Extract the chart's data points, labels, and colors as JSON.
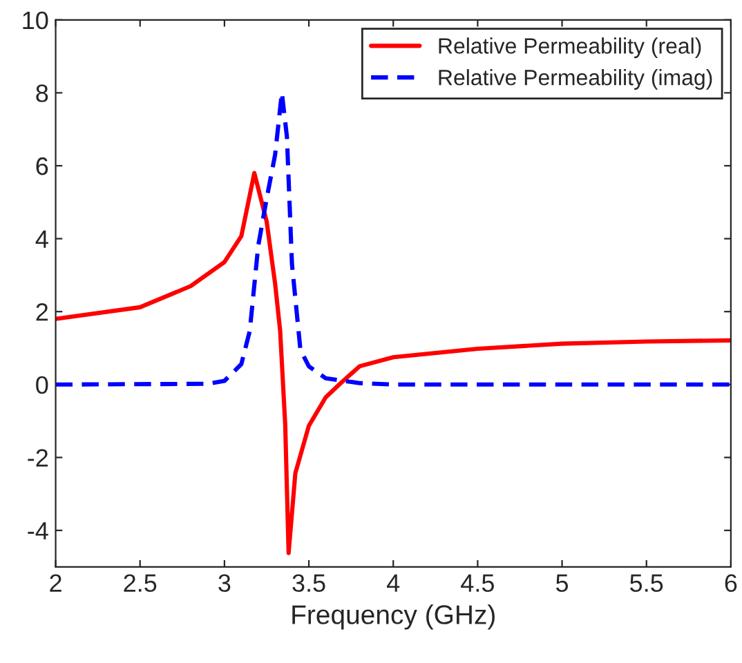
{
  "chart_data": {
    "type": "line",
    "xlabel": "Frequency (GHz)",
    "xlim": [
      2,
      6
    ],
    "ylim": [
      -5,
      10
    ],
    "xticks": [
      2,
      2.5,
      3,
      3.5,
      4,
      4.5,
      5,
      5.5,
      6
    ],
    "yticks": [
      -4,
      -2,
      0,
      2,
      4,
      6,
      8,
      10
    ],
    "grid": false,
    "legend": "top right",
    "marker": "none",
    "series": [
      {
        "name": "Relative Permeability (real)",
        "color": "#ff0000",
        "line_style": "solid",
        "x": [
          2,
          2.5,
          2.8,
          3.0,
          3.1,
          3.177,
          3.25,
          3.3,
          3.33,
          3.36,
          3.38,
          3.42,
          3.5,
          3.6,
          3.68,
          3.8,
          4.0,
          4.5,
          5,
          5.5,
          6
        ],
        "values": [
          1.8,
          2.12,
          2.7,
          3.36,
          4.07,
          5.8,
          4.47,
          2.77,
          1.47,
          -1.1,
          -4.62,
          -2.43,
          -1.13,
          -0.35,
          0,
          0.5,
          0.75,
          0.98,
          1.12,
          1.18,
          1.21
        ]
      },
      {
        "name": "Relative Permeability (imag)",
        "color": "#0000ff",
        "line_style": "dashed",
        "x": [
          2,
          2.9,
          3.0,
          3.1,
          3.15,
          3.2,
          3.25,
          3.3,
          3.34,
          3.37,
          3.4,
          3.45,
          3.5,
          3.6,
          3.8,
          4.0,
          6
        ],
        "values": [
          0,
          0.02,
          0.1,
          0.56,
          1.47,
          3.8,
          5.1,
          6.3,
          8.0,
          6.8,
          3.3,
          0.95,
          0.5,
          0.17,
          0.04,
          0,
          0
        ]
      }
    ]
  }
}
